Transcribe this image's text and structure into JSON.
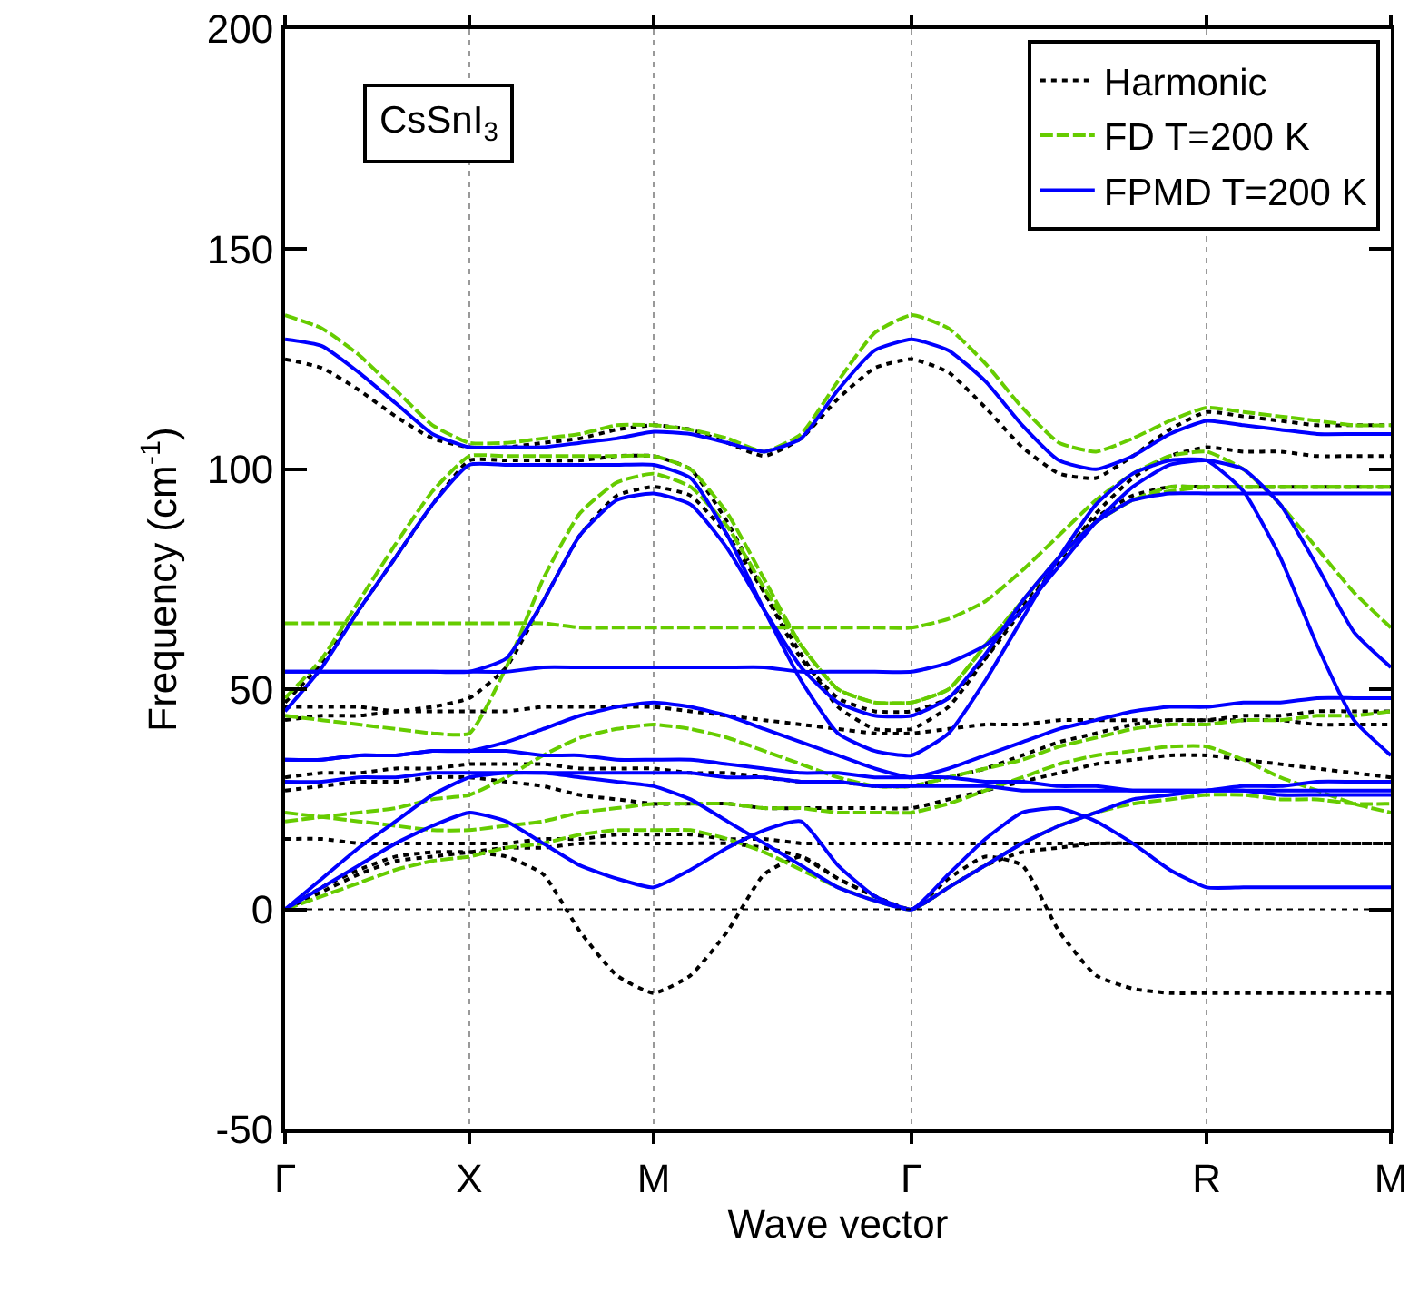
{
  "chart_data": {
    "type": "line",
    "xlabel": "Wave vector",
    "ylabel": "Frequency (cm$^{-1}$)",
    "categories": [
      "Γ",
      null,
      null,
      null,
      null,
      "X",
      null,
      null,
      null,
      null,
      "M",
      null,
      null,
      null,
      null,
      null,
      null,
      "Γ",
      null,
      null,
      null,
      null,
      null,
      null,
      null,
      "R",
      null,
      null,
      null,
      null,
      "M"
    ],
    "ylim": [
      -50,
      200
    ],
    "yticks": [
      -50,
      0,
      50,
      100,
      150,
      200
    ],
    "grid": "x",
    "legend": "top right",
    "marker": "none",
    "ref_lines": [
      {
        "axis": "y",
        "value": 0,
        "color": "#000000",
        "line_style": "dotted"
      }
    ],
    "annotations": [
      "CsSnI$_{3}$"
    ],
    "series": [
      {
        "name": "Harmonic",
        "color": "#000000",
        "line_style": "dotted",
        "values": [
          125,
          123,
          118,
          112,
          107,
          105,
          105,
          106,
          107,
          109,
          110,
          109,
          106,
          103,
          107,
          116,
          123,
          125,
          122,
          114,
          105,
          99,
          98,
          103,
          109,
          113,
          112,
          111,
          110,
          110,
          110
        ]
      },
      {
        "color": "#000000",
        "line_style": "dotted",
        "values": [
          47,
          56,
          68,
          80,
          92,
          102,
          102,
          102,
          102,
          103,
          103,
          100,
          88,
          72,
          57,
          48,
          45,
          45,
          48,
          57,
          68,
          79,
          90,
          98,
          103,
          105,
          104,
          104,
          103,
          103,
          103
        ]
      },
      {
        "color": "#000000",
        "line_style": "dotted",
        "values": [
          43,
          44,
          44,
          45,
          46,
          48,
          55,
          70,
          85,
          94,
          96,
          94,
          85,
          72,
          58,
          46,
          41,
          41,
          46,
          57,
          69,
          80,
          89,
          94,
          96,
          96,
          96,
          96,
          96,
          96,
          96
        ]
      },
      {
        "color": "#000000",
        "line_style": "dotted",
        "values": [
          46,
          46,
          46,
          45,
          45,
          45,
          45,
          46,
          46,
          46,
          46,
          45,
          44,
          43,
          42,
          41,
          40,
          40,
          41,
          42,
          42,
          43,
          43,
          43,
          43,
          43,
          43,
          43,
          42,
          42,
          42
        ]
      },
      {
        "color": "#000000",
        "line_style": "dotted",
        "values": [
          30,
          31,
          31,
          32,
          32,
          33,
          33,
          33,
          32,
          32,
          32,
          31,
          31,
          30,
          29,
          29,
          28,
          28,
          30,
          32,
          35,
          38,
          40,
          42,
          43,
          43,
          44,
          44,
          45,
          45,
          45
        ]
      },
      {
        "color": "#000000",
        "line_style": "dotted",
        "values": [
          27,
          28,
          29,
          29,
          30,
          30,
          29,
          28,
          26,
          25,
          24,
          24,
          24,
          23,
          23,
          23,
          23,
          23,
          25,
          27,
          29,
          31,
          33,
          34,
          35,
          35,
          34,
          33,
          32,
          31,
          30
        ]
      },
      {
        "color": "#000000",
        "line_style": "dotted",
        "values": [
          0,
          5,
          9,
          12,
          13,
          13,
          12,
          8,
          -5,
          -15,
          -19,
          -15,
          -5,
          8,
          12,
          7,
          3,
          0,
          7,
          12,
          10,
          -5,
          -15,
          -18,
          -19,
          -19,
          -19,
          -19,
          -19,
          -19,
          -19
        ]
      },
      {
        "color": "#000000",
        "line_style": "dotted",
        "values": [
          0,
          4,
          8,
          11,
          12,
          13,
          14,
          14,
          15,
          15,
          15,
          15,
          15,
          14,
          12,
          7,
          3,
          0,
          5,
          10,
          13,
          14,
          15,
          15,
          15,
          15,
          15,
          15,
          15,
          15,
          15
        ]
      },
      {
        "color": "#000000",
        "line_style": "dotted",
        "values": [
          16,
          16,
          15,
          15,
          15,
          15,
          15,
          16,
          16,
          17,
          17,
          17,
          16,
          16,
          15,
          15,
          15,
          15,
          15,
          15,
          15,
          15,
          15,
          15,
          15,
          15,
          15,
          15,
          15,
          15,
          15
        ]
      },
      {
        "name": "FD T=200 K",
        "color": "#66cc00",
        "line_style": "dashed",
        "values": [
          135,
          132,
          126,
          118,
          110,
          106,
          106,
          107,
          108,
          110,
          110,
          109,
          107,
          104,
          108,
          120,
          131,
          135,
          132,
          124,
          114,
          106,
          104,
          107,
          111,
          114,
          113,
          112,
          111,
          110,
          110
        ]
      },
      {
        "color": "#66cc00",
        "line_style": "dashed",
        "values": [
          65,
          65,
          65,
          65,
          65,
          65,
          65,
          65,
          64,
          64,
          64,
          64,
          64,
          64,
          64,
          64,
          64,
          64,
          66,
          70,
          77,
          85,
          93,
          99,
          103,
          104,
          100,
          92,
          82,
          72,
          64
        ]
      },
      {
        "color": "#66cc00",
        "line_style": "dashed",
        "values": [
          48,
          57,
          70,
          83,
          95,
          103,
          103,
          103,
          103,
          103,
          103,
          100,
          90,
          75,
          60,
          50,
          47,
          47,
          50,
          60,
          70,
          80,
          88,
          93,
          95,
          96,
          96,
          96,
          96,
          96,
          96
        ]
      },
      {
        "color": "#66cc00",
        "line_style": "dashed",
        "values": [
          44,
          43,
          42,
          41,
          40,
          40,
          55,
          75,
          90,
          97,
          99,
          96,
          87,
          73,
          60,
          50,
          47,
          47,
          50,
          60,
          70,
          80,
          88,
          93,
          96,
          96,
          96,
          96,
          96,
          96,
          96
        ]
      },
      {
        "color": "#66cc00",
        "line_style": "dashed",
        "values": [
          20,
          21,
          22,
          23,
          25,
          26,
          30,
          35,
          39,
          41,
          42,
          41,
          39,
          36,
          33,
          30,
          28,
          28,
          30,
          32,
          34,
          37,
          39,
          41,
          42,
          42,
          43,
          43,
          44,
          44,
          45
        ]
      },
      {
        "color": "#66cc00",
        "line_style": "dashed",
        "values": [
          22,
          21,
          20,
          19,
          18,
          18,
          19,
          20,
          22,
          23,
          24,
          24,
          24,
          23,
          23,
          22,
          22,
          22,
          24,
          27,
          30,
          33,
          35,
          36,
          37,
          37,
          34,
          30,
          27,
          24,
          22
        ]
      },
      {
        "color": "#66cc00",
        "line_style": "dashed",
        "values": [
          0,
          3,
          6,
          9,
          11,
          12,
          14,
          15,
          17,
          18,
          18,
          18,
          16,
          13,
          9,
          5,
          2,
          0,
          5,
          10,
          15,
          19,
          22,
          24,
          25,
          26,
          26,
          25,
          25,
          24,
          24
        ]
      },
      {
        "name": "FPMD T=200 K",
        "color": "#0000ff",
        "line_style": "solid",
        "values": [
          129.5,
          128,
          122,
          115,
          108,
          105,
          105,
          105,
          106,
          107,
          108.5,
          108,
          106,
          104,
          107,
          118,
          127,
          129.5,
          127,
          120,
          110,
          102,
          100,
          103,
          108,
          111,
          110,
          109,
          108,
          108,
          108
        ]
      },
      {
        "color": "#0000ff",
        "line_style": "solid",
        "values": [
          45,
          55,
          68,
          80,
          92,
          101,
          101,
          101,
          101,
          101,
          101,
          98,
          85,
          68,
          52,
          40,
          36,
          35,
          40,
          52,
          66,
          80,
          92,
          99,
          102,
          102,
          95,
          80,
          60,
          43,
          35
        ]
      },
      {
        "color": "#0000ff",
        "line_style": "solid",
        "values": [
          54,
          54,
          54,
          54,
          54,
          54,
          57,
          70,
          85,
          93,
          94.5,
          92,
          82,
          68,
          55,
          47,
          44,
          44,
          48,
          58,
          70,
          80,
          88,
          93,
          94.5,
          94.5,
          94.5,
          94.5,
          94.5,
          94.5,
          94.5
        ]
      },
      {
        "color": "#0000ff",
        "line_style": "solid",
        "values": [
          54,
          54,
          54,
          54,
          54,
          54,
          54,
          55,
          55,
          55,
          55,
          55,
          55,
          55,
          54,
          54,
          54,
          54,
          56,
          60,
          68,
          78,
          88,
          96,
          101,
          102,
          100,
          92,
          78,
          63,
          55
        ]
      },
      {
        "color": "#0000ff",
        "line_style": "solid",
        "values": [
          0,
          5,
          10,
          15,
          19,
          22,
          20,
          15,
          10,
          7,
          5,
          9,
          14,
          18,
          20,
          10,
          3,
          0,
          8,
          16,
          22,
          23,
          20,
          15,
          9,
          5,
          5,
          5,
          5,
          5,
          5
        ]
      },
      {
        "color": "#0000ff",
        "line_style": "solid",
        "values": [
          0,
          7,
          14,
          20,
          26,
          30,
          31,
          31,
          30,
          29,
          28,
          25,
          20,
          15,
          10,
          5,
          2,
          0,
          5,
          10,
          15,
          19,
          22,
          25,
          26,
          27,
          28,
          28,
          29,
          29,
          29
        ]
      },
      {
        "color": "#0000ff",
        "line_style": "solid",
        "values": [
          34,
          34,
          35,
          35,
          36,
          36,
          38,
          41,
          44,
          46,
          47,
          46,
          44,
          41,
          38,
          35,
          32,
          30,
          32,
          35,
          38,
          41,
          43,
          45,
          46,
          46,
          47,
          47,
          48,
          48,
          48
        ]
      },
      {
        "color": "#0000ff",
        "line_style": "solid",
        "values": [
          34,
          34,
          35,
          35,
          36,
          36,
          36,
          35,
          35,
          34,
          34,
          34,
          33,
          32,
          31,
          31,
          30,
          30,
          30,
          29,
          29,
          28,
          28,
          27,
          27,
          27,
          27,
          27,
          27,
          27,
          27
        ]
      },
      {
        "color": "#0000ff",
        "line_style": "solid",
        "values": [
          29,
          29,
          30,
          30,
          31,
          31,
          31,
          31,
          31,
          31,
          31,
          31,
          30,
          30,
          29,
          29,
          28,
          28,
          28,
          28,
          27,
          27,
          27,
          27,
          27,
          27,
          27,
          26,
          26,
          26,
          26
        ]
      }
    ]
  }
}
